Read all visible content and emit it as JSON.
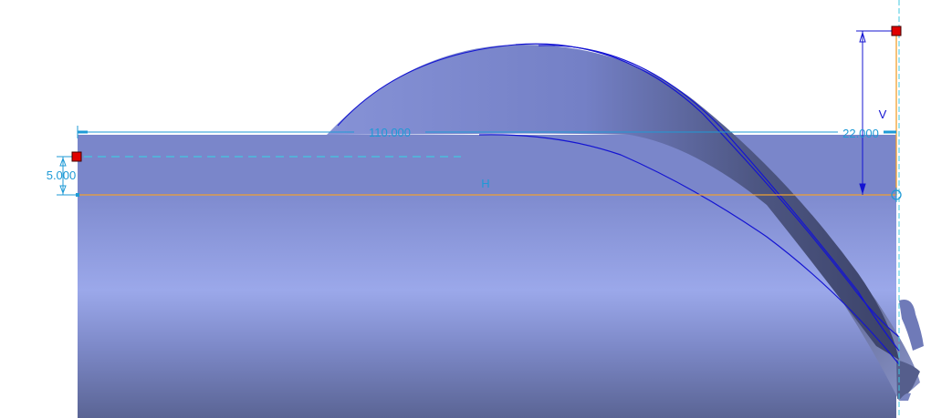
{
  "viewport": {
    "background": "#ffffff"
  },
  "dimensions": {
    "horizontal_value": "110.000",
    "vertical_value": "22.000",
    "offset_value": "5.000",
    "horizontal_constraint": "H",
    "vertical_constraint": "V"
  },
  "colors": {
    "dimension": "#1e9ad6",
    "sketch_curve": "#1414d2",
    "reference_line": "#f0a030",
    "handle_red": "#e00000",
    "solid_light": "#9aa6e6",
    "solid_mid": "#7c88cc",
    "solid_dark": "#3f4870"
  }
}
